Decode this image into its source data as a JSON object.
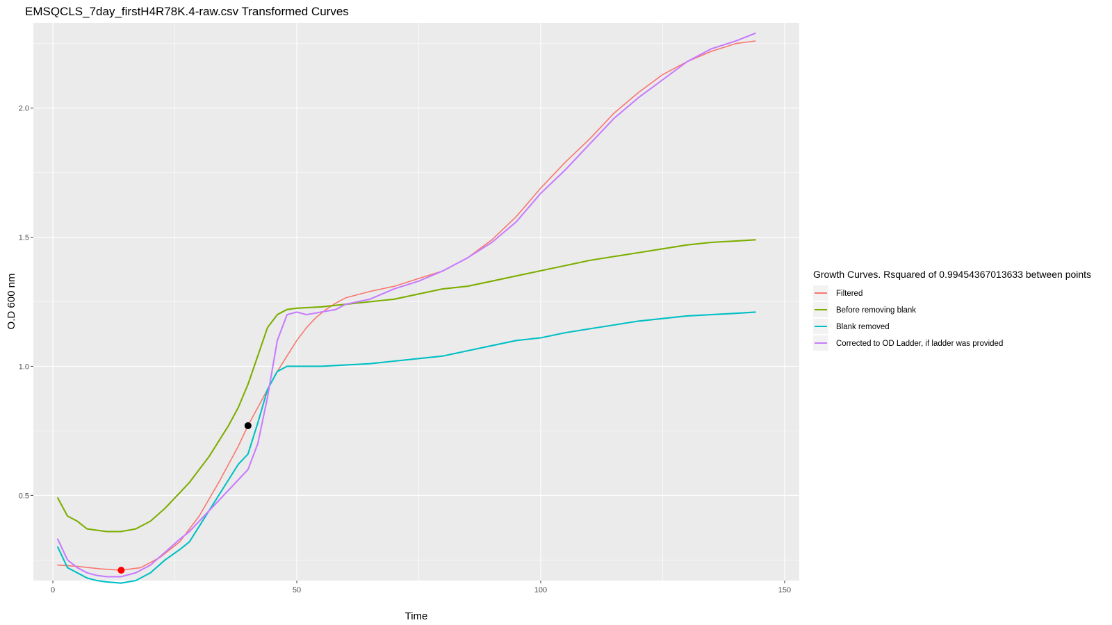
{
  "chart_data": {
    "type": "line",
    "title": "EMSQCLS_7day_firstH4R78K.4-raw.csv Transformed Curves",
    "xlabel": "Time",
    "ylabel": "O.D 600 nm",
    "xlim": [
      -4,
      153
    ],
    "ylim": [
      0.17,
      2.33
    ],
    "x_ticks": [
      0,
      50,
      100,
      150
    ],
    "y_ticks": [
      0.5,
      1.0,
      1.5,
      2.0
    ],
    "y_tick_labels": [
      "0.5",
      "1.0",
      "1.5",
      "2.0"
    ],
    "grid": true,
    "legend": {
      "title": "Growth Curves. Rsquared of 0.99454367013633 between points",
      "position": "right"
    },
    "series": [
      {
        "name": "Filtered",
        "color": "#F8766D",
        "x": [
          1,
          5,
          10,
          14,
          18,
          22,
          26,
          30,
          34,
          38,
          40,
          42,
          44,
          46,
          48,
          50,
          52,
          54,
          56,
          58,
          60,
          65,
          70,
          75,
          80,
          85,
          90,
          95,
          100,
          105,
          110,
          115,
          120,
          125,
          130,
          135,
          140,
          144
        ],
        "y": [
          0.23,
          0.225,
          0.215,
          0.21,
          0.22,
          0.26,
          0.32,
          0.42,
          0.55,
          0.69,
          0.77,
          0.84,
          0.91,
          0.98,
          1.04,
          1.1,
          1.15,
          1.19,
          1.22,
          1.245,
          1.265,
          1.29,
          1.31,
          1.34,
          1.37,
          1.42,
          1.49,
          1.58,
          1.69,
          1.79,
          1.88,
          1.98,
          2.06,
          2.13,
          2.18,
          2.22,
          2.25,
          2.26
        ]
      },
      {
        "name": "Before removing blank",
        "color": "#7CAE00",
        "x": [
          1,
          3,
          5,
          7,
          9,
          11,
          14,
          17,
          20,
          23,
          26,
          28,
          30,
          32,
          34,
          36,
          38,
          40,
          42,
          44,
          46,
          48,
          50,
          55,
          60,
          65,
          70,
          75,
          80,
          85,
          90,
          95,
          100,
          105,
          110,
          115,
          120,
          125,
          130,
          135,
          140,
          144
        ],
        "y": [
          0.49,
          0.42,
          0.4,
          0.37,
          0.365,
          0.36,
          0.36,
          0.37,
          0.4,
          0.45,
          0.51,
          0.55,
          0.6,
          0.65,
          0.71,
          0.77,
          0.84,
          0.93,
          1.04,
          1.15,
          1.2,
          1.22,
          1.225,
          1.23,
          1.24,
          1.25,
          1.26,
          1.28,
          1.3,
          1.31,
          1.33,
          1.35,
          1.37,
          1.39,
          1.41,
          1.425,
          1.44,
          1.455,
          1.47,
          1.48,
          1.485,
          1.49
        ]
      },
      {
        "name": "Blank removed",
        "color": "#00BFC4",
        "x": [
          1,
          3,
          5,
          7,
          9,
          11,
          14,
          17,
          20,
          23,
          26,
          28,
          30,
          32,
          34,
          36,
          38,
          40,
          42,
          44,
          46,
          48,
          50,
          55,
          60,
          65,
          70,
          75,
          80,
          85,
          90,
          95,
          100,
          105,
          110,
          115,
          120,
          125,
          130,
          135,
          140,
          144
        ],
        "y": [
          0.3,
          0.22,
          0.2,
          0.18,
          0.17,
          0.165,
          0.16,
          0.17,
          0.2,
          0.25,
          0.29,
          0.32,
          0.38,
          0.44,
          0.5,
          0.56,
          0.62,
          0.66,
          0.78,
          0.91,
          0.98,
          1.0,
          1.0,
          1.0,
          1.005,
          1.01,
          1.02,
          1.03,
          1.04,
          1.06,
          1.08,
          1.1,
          1.11,
          1.13,
          1.145,
          1.16,
          1.175,
          1.185,
          1.195,
          1.2,
          1.205,
          1.21
        ]
      },
      {
        "name": "Corrected to OD Ladder, if ladder was provided",
        "color": "#C77CFF",
        "x": [
          1,
          3,
          5,
          7,
          9,
          11,
          14,
          17,
          20,
          23,
          26,
          28,
          30,
          32,
          34,
          36,
          38,
          40,
          42,
          44,
          46,
          48,
          50,
          52,
          55,
          58,
          60,
          65,
          70,
          75,
          80,
          85,
          90,
          95,
          100,
          105,
          108,
          110,
          115,
          120,
          125,
          130,
          135,
          140,
          144
        ],
        "y": [
          0.33,
          0.25,
          0.22,
          0.2,
          0.19,
          0.185,
          0.185,
          0.2,
          0.23,
          0.28,
          0.33,
          0.36,
          0.4,
          0.44,
          0.48,
          0.52,
          0.56,
          0.6,
          0.7,
          0.88,
          1.1,
          1.2,
          1.21,
          1.2,
          1.21,
          1.22,
          1.24,
          1.26,
          1.3,
          1.33,
          1.37,
          1.42,
          1.48,
          1.56,
          1.67,
          1.76,
          1.82,
          1.86,
          1.96,
          2.04,
          2.11,
          2.18,
          2.23,
          2.26,
          2.29
        ]
      }
    ],
    "markers": [
      {
        "x": 14,
        "y": 0.21,
        "color": "#FF0000"
      },
      {
        "x": 40,
        "y": 0.77,
        "color": "#000000"
      }
    ]
  }
}
